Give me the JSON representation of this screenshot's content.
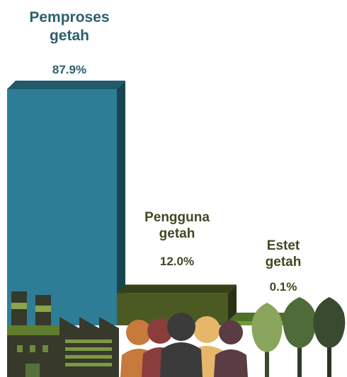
{
  "chart_data": {
    "type": "bar",
    "title": "",
    "xlabel": "",
    "ylabel": "",
    "ylim": [
      0,
      100
    ],
    "grid": false,
    "categories": [
      "Pemproses\ngetah",
      "Pengguna\ngetah",
      "Estet\ngetah"
    ],
    "values": [
      87.9,
      12.0,
      0.1
    ],
    "value_labels": [
      "87.9%",
      "12.0%",
      "0.1%"
    ],
    "colors": [
      "#2e7d96",
      "#4b5a23",
      "#6e9a3b"
    ],
    "label_colors": [
      "#2b5f6e",
      "#3f4a22",
      "#3f4a22"
    ],
    "icons": [
      "factory-icon",
      "people-icon",
      "trees-icon"
    ]
  }
}
